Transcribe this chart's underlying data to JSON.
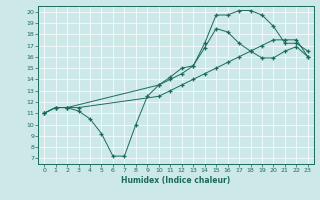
{
  "xlabel": "Humidex (Indice chaleur)",
  "xlim": [
    -0.5,
    23.5
  ],
  "ylim": [
    6.5,
    20.5
  ],
  "xticks": [
    0,
    1,
    2,
    3,
    4,
    5,
    6,
    7,
    8,
    9,
    10,
    11,
    12,
    13,
    14,
    15,
    16,
    17,
    18,
    19,
    20,
    21,
    22,
    23
  ],
  "yticks": [
    7,
    8,
    9,
    10,
    11,
    12,
    13,
    14,
    15,
    16,
    17,
    18,
    19,
    20
  ],
  "bg_color": "#cce8e8",
  "line_color": "#1a6b5a",
  "grid_color": "#ffffff",
  "line1_x": [
    0,
    1,
    2,
    3,
    4,
    5,
    6,
    7,
    8,
    9,
    10,
    11,
    12,
    13,
    14,
    15,
    16,
    17,
    18,
    19,
    20,
    21,
    22,
    23
  ],
  "line1_y": [
    11.0,
    11.5,
    11.5,
    11.2,
    10.5,
    9.2,
    7.2,
    7.2,
    10.0,
    12.5,
    13.5,
    14.2,
    15.0,
    15.2,
    16.8,
    18.5,
    18.2,
    17.2,
    16.5,
    15.9,
    15.9,
    16.5,
    16.9,
    16.0
  ],
  "line2_x": [
    0,
    1,
    2,
    3,
    10,
    11,
    12,
    13,
    14,
    15,
    16,
    17,
    18,
    19,
    20,
    21,
    22,
    23
  ],
  "line2_y": [
    11.0,
    11.5,
    11.5,
    11.5,
    12.5,
    13.0,
    13.5,
    14.0,
    14.5,
    15.0,
    15.5,
    16.0,
    16.5,
    17.0,
    17.5,
    17.5,
    17.5,
    16.0
  ],
  "line3_x": [
    0,
    1,
    2,
    10,
    11,
    12,
    13,
    14,
    15,
    16,
    17,
    18,
    19,
    20,
    21,
    22,
    23
  ],
  "line3_y": [
    11.0,
    11.5,
    11.5,
    13.5,
    14.0,
    14.5,
    15.2,
    17.2,
    19.7,
    19.7,
    20.1,
    20.1,
    19.7,
    18.7,
    17.2,
    17.2,
    16.5
  ]
}
